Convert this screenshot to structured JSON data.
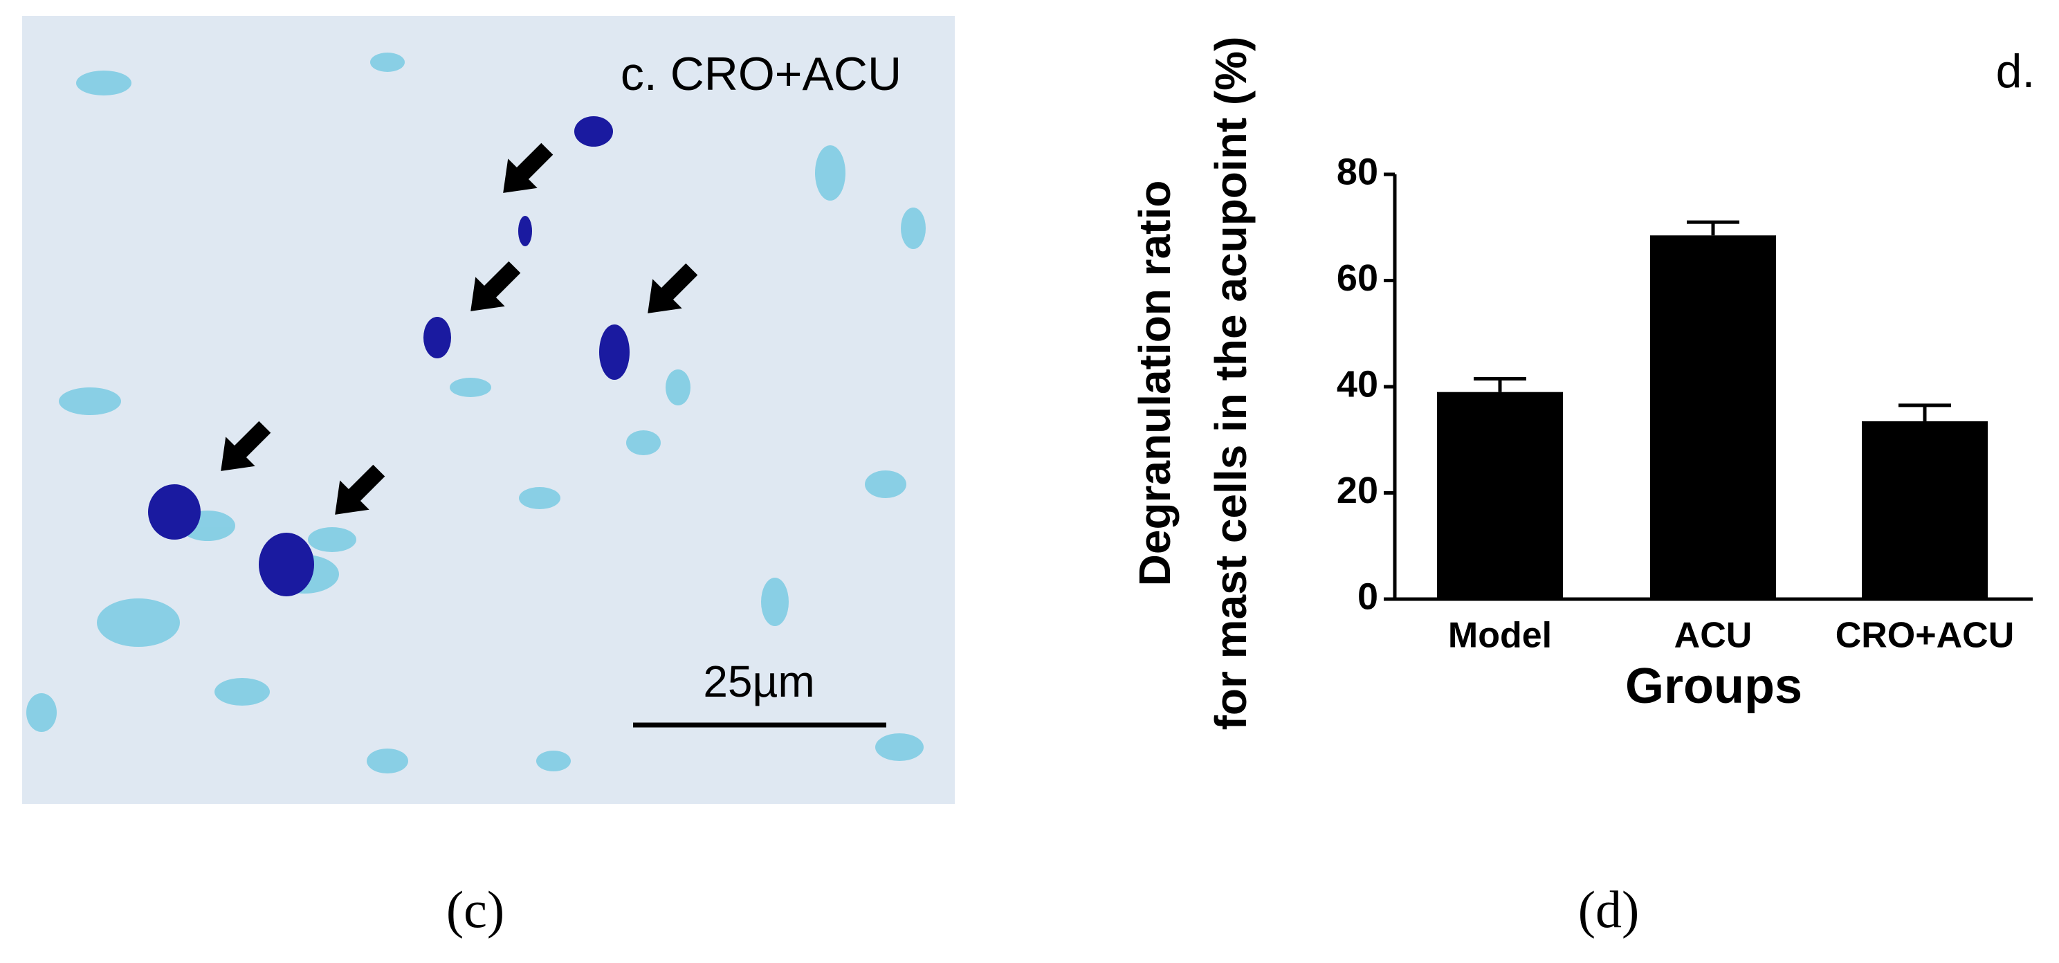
{
  "chart_data": {
    "type": "bar",
    "ylabel": [
      "Degranulation ratio",
      "for mast cells in the acupoint (%)"
    ],
    "xlabel": "Groups",
    "categories": [
      "Model",
      "ACU",
      "CRO+ACU"
    ],
    "values": [
      39,
      68.5,
      33.5
    ],
    "errors": [
      2.5,
      2.5,
      3
    ],
    "color": "#000000",
    "ylim": [
      0,
      80
    ],
    "yticks": [
      0,
      20,
      40,
      60,
      80
    ]
  },
  "micrograph": {
    "label": "c. CRO+ACU",
    "scale_bar": "25µm",
    "caption": "(c)"
  },
  "chart_panel": {
    "label": "d.",
    "caption": "(d)"
  }
}
